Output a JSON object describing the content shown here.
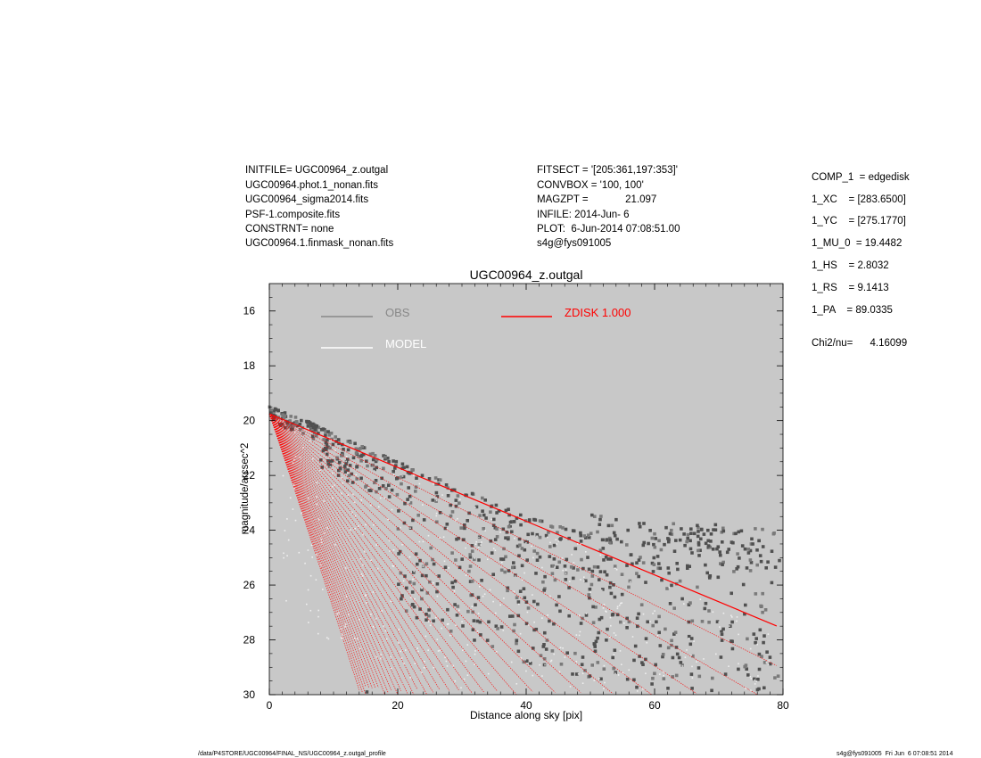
{
  "header_left": [
    "INITFILE= UGC00964_z.outgal",
    "UGC00964.phot.1_nonan.fits",
    "UGC00964_sigma2014.fits",
    "PSF-1.composite.fits",
    "CONSTRNT= none",
    "UGC00964.1.finmask_nonan.fits"
  ],
  "header_mid": [
    "FITSECT = '[205:361,197:353]'",
    "CONVBOX = '100, 100'",
    "MAGZPT =             21.097",
    "INFILE: 2014-Jun- 6",
    "PLOT:  6-Jun-2014 07:08:51.00",
    "s4g@fys091005"
  ],
  "components": [
    "COMP_1  = edgedisk",
    "1_XC    = [283.6500]",
    "1_YC    = [275.1770]",
    "1_MU_0  = 19.4482",
    "1_HS    = 2.8032",
    "1_RS    = 9.1413",
    "1_PA    = 89.0335"
  ],
  "chi2": "Chi2/nu=      4.16099",
  "footer_left": "/data/P4STORE/UGC00964/FINAL_NS/UGC00964_z.outgal_profile",
  "footer_right": "s4g@fys091005  Fri Jun  6 07:08:51 2014",
  "colors": {
    "plot_bg": "#c8c8c8",
    "obs": "#888888",
    "obs_points": "#505050",
    "model": "#ffffff",
    "zdisk": "#ff0000"
  },
  "chart_data": {
    "type": "scatter",
    "title": "UGC00964_z.outgal",
    "xlabel": "Distance along sky [pix]",
    "ylabel": "magnitude/arcsec^2",
    "xlim": [
      0,
      80
    ],
    "ylim": [
      30,
      15
    ],
    "y_inverted": true,
    "xticks": [
      0,
      20,
      40,
      60,
      80
    ],
    "yticks": [
      16,
      18,
      20,
      22,
      24,
      26,
      28,
      30
    ],
    "legend": [
      {
        "name": "OBS",
        "color": "#888888"
      },
      {
        "name": "MODEL",
        "color": "#ffffff"
      },
      {
        "name": "ZDISK  1.000",
        "color": "#ff0000"
      }
    ],
    "series": [
      {
        "name": "ZDISK",
        "model": "edgedisk",
        "mu0": 19.4482,
        "hs": 2.8032,
        "rs": 9.1413,
        "profile_start": 19.75,
        "profile_upper_slope": 0.098,
        "x_max": 79
      },
      {
        "name": "OBS",
        "upper_envelope": [
          [
            0,
            19.5
          ],
          [
            5,
            19.9
          ],
          [
            10,
            20.5
          ],
          [
            20,
            21.5
          ],
          [
            30,
            22.5
          ],
          [
            40,
            23.5
          ],
          [
            50,
            24.2
          ],
          [
            60,
            24.5
          ],
          [
            70,
            24.6
          ],
          [
            80,
            24.8
          ]
        ]
      }
    ]
  }
}
